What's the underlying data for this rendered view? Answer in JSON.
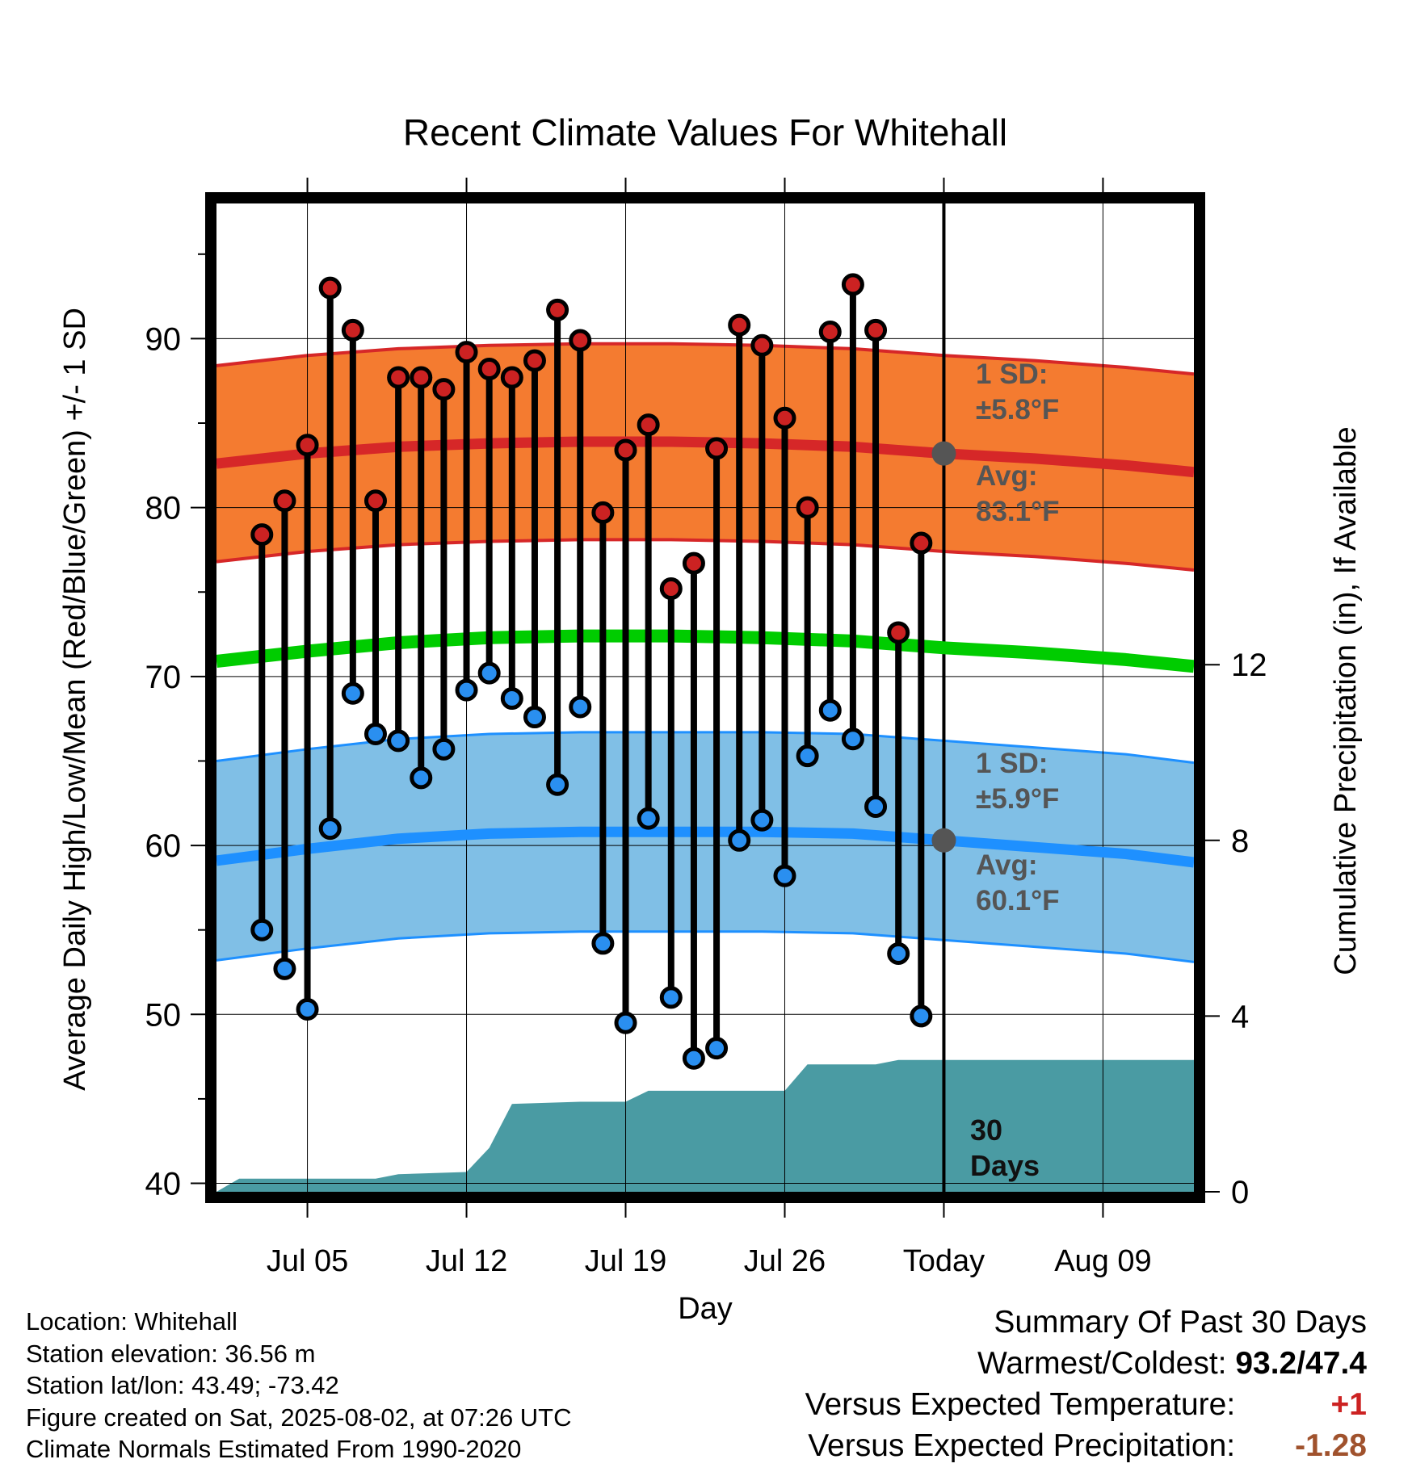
{
  "chart_data": {
    "type": "line",
    "title": "Recent Climate Values For Whitehall",
    "xlabel": "Day",
    "ylabel": "Average Daily High/Low/Mean (Red/Blue/Green) +/- 1 SD",
    "y2label": "Cumulative Precipitation (in), If Available",
    "ylim": [
      39.5,
      98
    ],
    "y2lim": [
      0,
      22.5
    ],
    "xlim": [
      "2025-07-01",
      "2025-08-13"
    ],
    "x_tick_labels": [
      {
        "date": "2025-07-05",
        "label": "Jul 05"
      },
      {
        "date": "2025-07-12",
        "label": "Jul 12"
      },
      {
        "date": "2025-07-19",
        "label": "Jul 19"
      },
      {
        "date": "2025-07-26",
        "label": "Jul 26"
      },
      {
        "date": "2025-08-02",
        "label": "Today"
      },
      {
        "date": "2025-08-09",
        "label": "Aug 09"
      }
    ],
    "y_ticks": [
      40,
      50,
      60,
      70,
      80,
      90
    ],
    "y2_ticks": [
      0,
      4,
      8,
      12
    ],
    "grid": true,
    "daily": {
      "dates": [
        "2025-07-03",
        "2025-07-04",
        "2025-07-05",
        "2025-07-06",
        "2025-07-07",
        "2025-07-08",
        "2025-07-09",
        "2025-07-10",
        "2025-07-11",
        "2025-07-12",
        "2025-07-13",
        "2025-07-14",
        "2025-07-15",
        "2025-07-16",
        "2025-07-17",
        "2025-07-18",
        "2025-07-19",
        "2025-07-20",
        "2025-07-21",
        "2025-07-22",
        "2025-07-23",
        "2025-07-24",
        "2025-07-25",
        "2025-07-26",
        "2025-07-27",
        "2025-07-28",
        "2025-07-29",
        "2025-07-30",
        "2025-07-31",
        "2025-08-01"
      ],
      "high": [
        78.4,
        80.4,
        83.7,
        93.0,
        90.5,
        80.4,
        87.7,
        87.7,
        87.0,
        89.2,
        88.2,
        87.7,
        88.7,
        91.7,
        89.9,
        79.7,
        83.4,
        84.9,
        75.2,
        76.7,
        83.5,
        90.8,
        89.6,
        85.3,
        80.0,
        90.4,
        93.2,
        90.5,
        72.6,
        77.9
      ],
      "low": [
        55.0,
        52.7,
        50.3,
        61.0,
        69.0,
        66.6,
        66.2,
        64.0,
        65.7,
        69.2,
        70.2,
        68.7,
        67.6,
        63.6,
        68.2,
        54.2,
        49.5,
        61.6,
        51.0,
        47.4,
        48.0,
        60.3,
        61.5,
        58.2,
        65.3,
        68.0,
        66.3,
        62.3,
        53.6,
        49.9
      ]
    },
    "normals": {
      "dates": [
        "2025-07-01",
        "2025-07-05",
        "2025-07-09",
        "2025-07-13",
        "2025-07-17",
        "2025-07-21",
        "2025-07-25",
        "2025-07-29",
        "2025-08-02",
        "2025-08-06",
        "2025-08-10",
        "2025-08-13"
      ],
      "avg_high": [
        82.6,
        83.2,
        83.6,
        83.8,
        83.9,
        83.9,
        83.8,
        83.6,
        83.2,
        82.9,
        82.5,
        82.1
      ],
      "avg_low": [
        59.1,
        59.8,
        60.4,
        60.7,
        60.8,
        60.8,
        60.8,
        60.7,
        60.3,
        59.9,
        59.5,
        59.0
      ],
      "avg_mean": [
        70.9,
        71.5,
        72.0,
        72.3,
        72.4,
        72.4,
        72.3,
        72.1,
        71.7,
        71.4,
        71.0,
        70.6
      ],
      "sd_high": 5.8,
      "sd_low": 5.9
    },
    "precip_cumulative": {
      "dates": [
        "2025-07-01",
        "2025-07-02",
        "2025-07-08",
        "2025-07-09",
        "2025-07-12",
        "2025-07-13",
        "2025-07-14",
        "2025-07-17",
        "2025-07-19",
        "2025-07-20",
        "2025-07-26",
        "2025-07-27",
        "2025-07-30",
        "2025-07-31",
        "2025-08-02",
        "2025-08-13"
      ],
      "values": [
        0.0,
        0.3,
        0.3,
        0.4,
        0.45,
        1.0,
        2.0,
        2.05,
        2.05,
        2.3,
        2.3,
        2.9,
        2.9,
        3.0,
        3.0,
        3.0
      ]
    },
    "annotations": {
      "high_sd_label": "1 SD:",
      "high_sd_value": "±5.8°F",
      "high_avg_label": "Avg:",
      "high_avg_value": "83.1°F",
      "low_sd_label": "1 SD:",
      "low_sd_value": "±5.9°F",
      "low_avg_label": "Avg:",
      "low_avg_value": "60.1°F",
      "period_number": "30",
      "period_unit": "Days"
    },
    "colors": {
      "high_band": "#f47b30",
      "high_line": "#d62728",
      "low_band": "#80bfe6",
      "low_line": "#1e90ff",
      "mean_line": "#00cc00",
      "precip": "#4a9ba3",
      "high_marker": "#cc2222",
      "low_marker": "#2a8ff0"
    }
  },
  "info": {
    "location": "Location: Whitehall",
    "elevation": "Station elevation: 36.56 m",
    "latlon": "Station lat/lon: 43.49; -73.42",
    "created": "Figure created on Sat, 2025-08-02, at 07:26 UTC",
    "normals": "Climate Normals Estimated From 1990-2020"
  },
  "summary": {
    "title": "Summary Of Past 30 Days",
    "warmest_label": "Warmest/Coldest:",
    "warmest_value": "93.2/47.4",
    "temp_label": "Versus Expected Temperature:",
    "temp_value": "+1",
    "temp_color": "#cc2222",
    "precip_label": "Versus Expected Precipitation:",
    "precip_value": "-1.28",
    "precip_color": "#a0522d"
  }
}
